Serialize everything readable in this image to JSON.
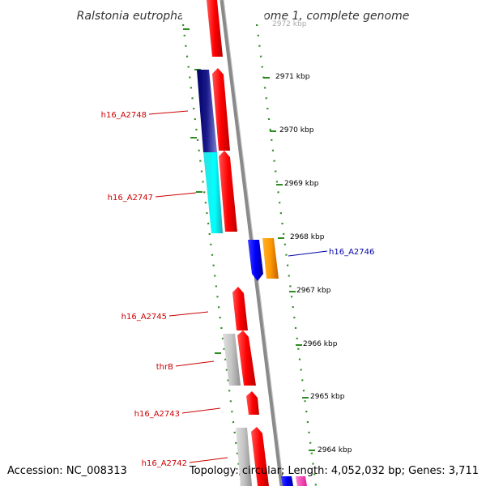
{
  "title": "Ralstonia eutropha H16 chromosome 1, complete genome",
  "accession": "Accession: NC_008313",
  "summary": "Topology: circular; Length: 4,052,032 bp; Genes: 3,711",
  "colors": {
    "backbone": "#8a8a8a",
    "tick": "#2e8b22",
    "label_left": "#cc0000",
    "label_right": "#0000aa"
  },
  "scale": {
    "unit": "kbp",
    "ticks": [
      {
        "kbp": 2972,
        "label": "2972 kbp",
        "faded": true
      },
      {
        "kbp": 2971,
        "label": "2971 kbp"
      },
      {
        "kbp": 2970,
        "label": "2970 kbp"
      },
      {
        "kbp": 2969,
        "label": "2969 kbp"
      },
      {
        "kbp": 2968,
        "label": "2968 kbp"
      },
      {
        "kbp": 2967,
        "label": "2967 kbp"
      },
      {
        "kbp": 2966,
        "label": "2966 kbp"
      },
      {
        "kbp": 2965,
        "label": "2965 kbp"
      },
      {
        "kbp": 2964,
        "label": "2964 kbp"
      }
    ]
  },
  "gene_labels": [
    {
      "text": "h16_A2748",
      "side": "left"
    },
    {
      "text": "h16_A2747",
      "side": "left"
    },
    {
      "text": "h16_A2746",
      "side": "right"
    },
    {
      "text": "h16_A2745",
      "side": "left"
    },
    {
      "text": "thrB",
      "side": "left"
    },
    {
      "text": "h16_A2743",
      "side": "left"
    },
    {
      "text": "h16_A2742",
      "side": "left"
    }
  ]
}
